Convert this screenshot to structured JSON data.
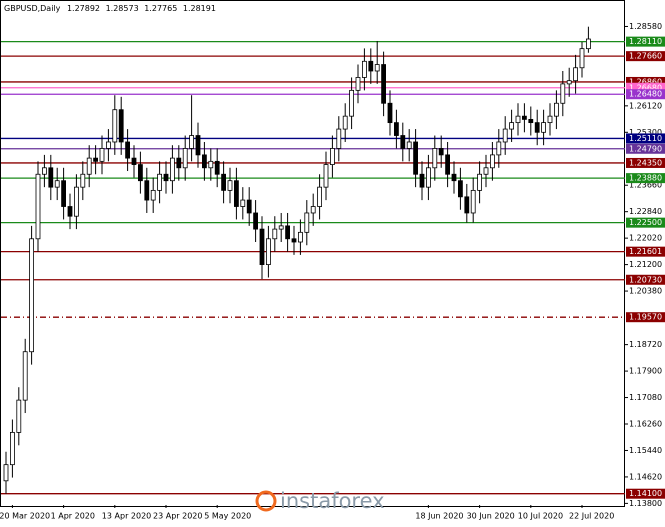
{
  "chart_data": {
    "type": "candlestick",
    "title": "GBPUSD,Daily",
    "watermark": "instaforex",
    "categories": [
      null,
      "20 Mar 2020",
      null,
      null,
      null,
      null,
      null,
      null,
      null,
      "1 Apr 2020",
      null,
      null,
      null,
      null,
      null,
      null,
      null,
      "13 Apr 2020",
      null,
      null,
      null,
      null,
      null,
      null,
      null,
      "23 Apr 2020",
      null,
      null,
      null,
      null,
      null,
      null,
      null,
      "5 May 2020",
      null,
      null,
      null,
      null,
      null,
      null,
      null,
      null,
      null,
      null,
      null,
      null,
      null,
      null,
      null,
      null,
      null,
      null,
      null,
      null,
      null,
      null,
      null,
      null,
      null,
      null,
      null,
      null,
      null,
      null,
      null,
      null,
      "18 Jun 2020",
      null,
      null,
      null,
      null,
      null,
      null,
      null,
      "30 Jun 2020",
      null,
      null,
      null,
      null,
      null,
      null,
      null,
      "10 Jul 2020",
      null,
      null,
      null,
      null,
      null,
      null,
      null,
      "22 Jul 2020",
      null
    ],
    "open": [
      1.145,
      1.15,
      1.16,
      1.17,
      1.185,
      1.22,
      1.24,
      1.242,
      1.236,
      1.238,
      1.23,
      1.227,
      1.236,
      1.24,
      1.245,
      1.244,
      1.248,
      1.25,
      1.26,
      1.25,
      1.245,
      1.243,
      1.238,
      1.232,
      1.235,
      1.24,
      1.238,
      1.245,
      1.242,
      1.248,
      1.252,
      1.246,
      1.242,
      1.244,
      1.24,
      1.235,
      1.238,
      1.23,
      1.232,
      1.228,
      1.223,
      1.212,
      1.22,
      1.223,
      1.224,
      1.22,
      1.219,
      1.222,
      1.228,
      1.23,
      1.236,
      1.243,
      1.248,
      1.254,
      1.258,
      1.266,
      1.27,
      1.275,
      1.272,
      1.274,
      1.262,
      1.256,
      1.252,
      1.248,
      1.25,
      1.24,
      1.236,
      1.242,
      1.248,
      1.246,
      1.24,
      1.238,
      1.233,
      1.228,
      1.235,
      1.24,
      1.242,
      1.246,
      1.25,
      1.254,
      1.256,
      1.258,
      1.257,
      1.256,
      1.253,
      1.256,
      1.258,
      1.262,
      1.268,
      1.269,
      1.273,
      1.27892
    ],
    "high": [
      1.154,
      1.164,
      1.174,
      1.189,
      1.224,
      1.244,
      1.246,
      1.246,
      1.242,
      1.242,
      1.234,
      1.24,
      1.244,
      1.249,
      1.249,
      1.252,
      1.254,
      1.2645,
      1.264,
      1.254,
      1.249,
      1.247,
      1.242,
      1.239,
      1.244,
      1.244,
      1.249,
      1.249,
      1.252,
      1.2645,
      1.256,
      1.25,
      1.248,
      1.248,
      1.244,
      1.242,
      1.242,
      1.236,
      1.236,
      1.232,
      1.227,
      1.224,
      1.227,
      1.228,
      1.228,
      1.224,
      1.226,
      1.232,
      1.234,
      1.24,
      1.247,
      1.252,
      1.258,
      1.262,
      1.27,
      1.274,
      1.279,
      1.279,
      1.2813,
      1.278,
      1.266,
      1.26,
      1.256,
      1.254,
      1.254,
      1.244,
      1.246,
      1.252,
      1.252,
      1.25,
      1.244,
      1.242,
      1.237,
      1.239,
      1.244,
      1.246,
      1.25,
      1.254,
      1.258,
      1.26,
      1.262,
      1.262,
      1.261,
      1.26,
      1.26,
      1.262,
      1.266,
      1.272,
      1.273,
      1.277,
      1.281,
      1.28573
    ],
    "low": [
      1.141,
      1.146,
      1.156,
      1.166,
      1.181,
      1.216,
      1.236,
      1.232,
      1.232,
      1.226,
      1.223,
      1.223,
      1.232,
      1.236,
      1.24,
      1.24,
      1.244,
      1.246,
      1.246,
      1.241,
      1.239,
      1.234,
      1.228,
      1.228,
      1.231,
      1.234,
      1.234,
      1.238,
      1.238,
      1.244,
      1.242,
      1.238,
      1.238,
      1.236,
      1.231,
      1.231,
      1.226,
      1.226,
      1.224,
      1.219,
      1.2075,
      1.208,
      1.216,
      1.219,
      1.216,
      1.215,
      1.215,
      1.218,
      1.224,
      1.226,
      1.232,
      1.239,
      1.244,
      1.25,
      1.254,
      1.262,
      1.266,
      1.268,
      1.268,
      1.258,
      1.252,
      1.248,
      1.244,
      1.244,
      1.236,
      1.232,
      1.232,
      1.238,
      1.242,
      1.236,
      1.234,
      1.229,
      1.225,
      1.225,
      1.231,
      1.236,
      1.238,
      1.242,
      1.246,
      1.25,
      1.252,
      1.253,
      1.252,
      1.249,
      1.249,
      1.252,
      1.254,
      1.258,
      1.264,
      1.265,
      1.27,
      1.27765
    ],
    "close": [
      1.15,
      1.16,
      1.17,
      1.185,
      1.22,
      1.24,
      1.242,
      1.236,
      1.238,
      1.23,
      1.227,
      1.236,
      1.24,
      1.245,
      1.244,
      1.248,
      1.25,
      1.26,
      1.25,
      1.245,
      1.243,
      1.238,
      1.232,
      1.235,
      1.24,
      1.238,
      1.245,
      1.242,
      1.248,
      1.252,
      1.246,
      1.242,
      1.244,
      1.24,
      1.235,
      1.238,
      1.23,
      1.232,
      1.228,
      1.223,
      1.212,
      1.22,
      1.223,
      1.224,
      1.22,
      1.219,
      1.222,
      1.228,
      1.23,
      1.236,
      1.243,
      1.248,
      1.254,
      1.258,
      1.266,
      1.27,
      1.275,
      1.272,
      1.274,
      1.262,
      1.256,
      1.252,
      1.248,
      1.25,
      1.24,
      1.236,
      1.242,
      1.248,
      1.246,
      1.24,
      1.238,
      1.233,
      1.228,
      1.235,
      1.24,
      1.242,
      1.246,
      1.25,
      1.254,
      1.256,
      1.258,
      1.257,
      1.256,
      1.253,
      1.256,
      1.258,
      1.262,
      1.268,
      1.269,
      1.273,
      1.27892,
      1.28191
    ],
    "ylim": [
      1.1375,
      1.294
    ],
    "yticks": [
      {
        "value": 1.2858,
        "label": "1.28580"
      },
      {
        "value": 1.2612,
        "label": "1.26120"
      },
      {
        "value": 1.253,
        "label": "1.25300"
      },
      {
        "value": 1.2366,
        "label": "1.23660"
      },
      {
        "value": 1.2284,
        "label": "1.22840"
      },
      {
        "value": 1.2202,
        "label": "1.22020"
      },
      {
        "value": 1.212,
        "label": "1.21200"
      },
      {
        "value": 1.2038,
        "label": "1.20380"
      },
      {
        "value": 1.1872,
        "label": "1.18720"
      },
      {
        "value": 1.179,
        "label": "1.17900"
      },
      {
        "value": 1.1708,
        "label": "1.17080"
      },
      {
        "value": 1.1626,
        "label": "1.16260"
      },
      {
        "value": 1.1544,
        "label": "1.15440"
      },
      {
        "value": 1.1462,
        "label": "1.14620"
      },
      {
        "value": 1.138,
        "label": "1.13800"
      }
    ],
    "levels": [
      {
        "value": 1.2811,
        "label": "1.28110",
        "color": "#1a8a1a"
      },
      {
        "value": 1.2766,
        "label": "1.27660",
        "color": "#8b0000"
      },
      {
        "value": 1.2686,
        "label": "1.26860",
        "color": "#8b0000"
      },
      {
        "value": 1.2668,
        "label": "1.26680",
        "color": "#ff66cc"
      },
      {
        "value": 1.2648,
        "label": "1.26480",
        "color": "#9933cc"
      },
      {
        "value": 1.2511,
        "label": "1.25110",
        "color": "#000080"
      },
      {
        "value": 1.2479,
        "label": "1.24790",
        "color": "#663399"
      },
      {
        "value": 1.2435,
        "label": "1.24350",
        "color": "#8b0000"
      },
      {
        "value": 1.2388,
        "label": "1.23880",
        "color": "#1a8a1a"
      },
      {
        "value": 1.225,
        "label": "1.22500",
        "color": "#1a8a1a"
      },
      {
        "value": 1.21601,
        "label": "1.21601",
        "color": "#8b0000"
      },
      {
        "value": 1.2073,
        "label": "1.20730",
        "color": "#8b0000"
      },
      {
        "value": 1.1957,
        "label": "1.19570",
        "color": "#8b0000",
        "style": "dashdot"
      },
      {
        "value": 1.141,
        "label": "1.14100",
        "color": "#8b0000"
      }
    ],
    "up_color": "#ffffff",
    "down_color": "#000000"
  }
}
